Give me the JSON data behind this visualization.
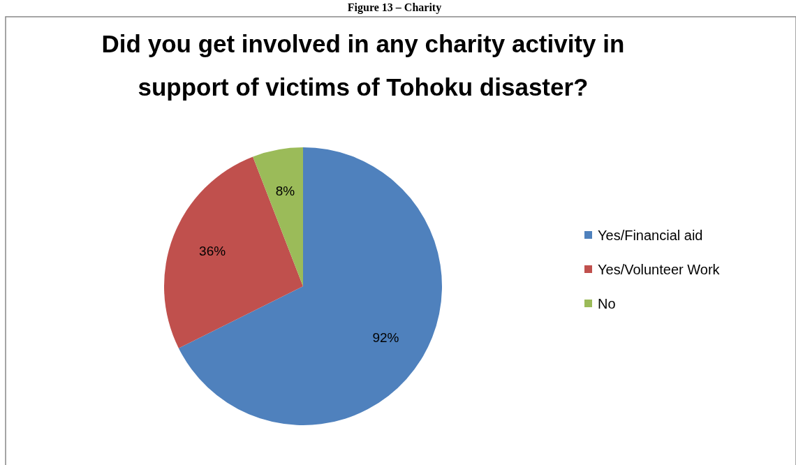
{
  "chart_data": {
    "type": "pie",
    "title": "Did you get involved in any charity activity in support of victims of Tohoku disaster?",
    "annotations": [
      "Figure 13 – Charity"
    ],
    "categories": [
      "Yes/Financial aid",
      "Yes/Volunteer Work",
      "No"
    ],
    "values": [
      92,
      36,
      8
    ],
    "colors": [
      "#4f81bd",
      "#c0504d",
      "#9bbb59"
    ],
    "value_labels": [
      "92%",
      "36%",
      "8%"
    ],
    "legend": "right"
  }
}
